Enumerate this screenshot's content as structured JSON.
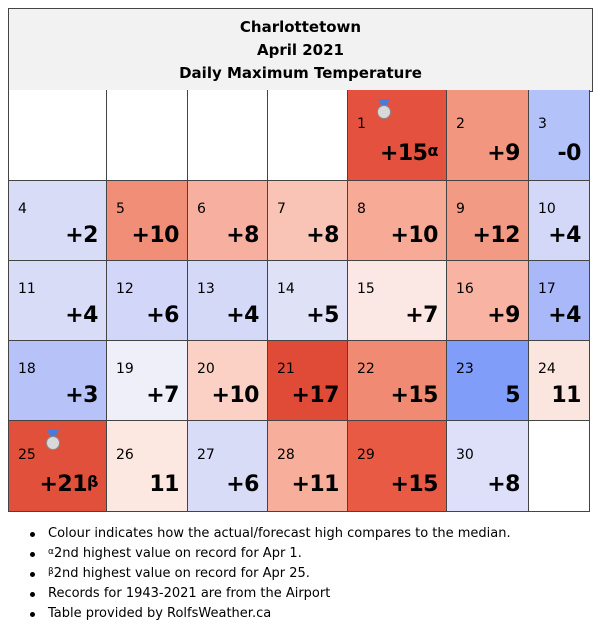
{
  "header": {
    "line1": "Charlottetown",
    "line2": "April 2021",
    "line3": "Daily Maximum Temperature"
  },
  "calendar": {
    "cells": [
      {
        "day": "",
        "value": "",
        "color": "#ffffff"
      },
      {
        "day": "",
        "value": "",
        "color": "#ffffff"
      },
      {
        "day": "",
        "value": "",
        "color": "#ffffff"
      },
      {
        "day": "",
        "value": "",
        "color": "#ffffff"
      },
      {
        "day": "1",
        "value": "+15",
        "sup": "α",
        "medal": true,
        "color": "#e4513e"
      },
      {
        "day": "2",
        "value": "+9",
        "color": "#f39680"
      },
      {
        "day": "3",
        "value": "-0",
        "color": "#b3c2f9"
      },
      {
        "day": "4",
        "value": "+2",
        "color": "#d8dcf7"
      },
      {
        "day": "5",
        "value": "+10",
        "color": "#f18e77"
      },
      {
        "day": "6",
        "value": "+8",
        "color": "#f7b09f"
      },
      {
        "day": "7",
        "value": "+8",
        "color": "#f9c4b6"
      },
      {
        "day": "8",
        "value": "+10",
        "color": "#f7aa96"
      },
      {
        "day": "9",
        "value": "+12",
        "color": "#f39a84"
      },
      {
        "day": "10",
        "value": "+4",
        "color": "#d3d8f8"
      },
      {
        "day": "11",
        "value": "+4",
        "color": "#d8dcf7"
      },
      {
        "day": "12",
        "value": "+6",
        "color": "#d2d6f8"
      },
      {
        "day": "13",
        "value": "+4",
        "color": "#d5d9f8"
      },
      {
        "day": "14",
        "value": "+5",
        "color": "#dfe2f7"
      },
      {
        "day": "15",
        "value": "+7",
        "color": "#fbe7e3"
      },
      {
        "day": "16",
        "value": "+9",
        "color": "#f8b3a2"
      },
      {
        "day": "17",
        "value": "+4",
        "color": "#a9b8f9"
      },
      {
        "day": "18",
        "value": "+3",
        "color": "#b7c3f8"
      },
      {
        "day": "19",
        "value": "+7",
        "color": "#efeffa"
      },
      {
        "day": "20",
        "value": "+10",
        "color": "#fbd0c5"
      },
      {
        "day": "21",
        "value": "+17",
        "color": "#e04b38"
      },
      {
        "day": "22",
        "value": "+15",
        "color": "#f08a72"
      },
      {
        "day": "23",
        "value": "5",
        "color": "#7f9df9"
      },
      {
        "day": "24",
        "value": "11",
        "color": "#fbe5df"
      },
      {
        "day": "25",
        "value": "+21",
        "sup": "β",
        "medal": true,
        "color": "#e0503b"
      },
      {
        "day": "26",
        "value": "11",
        "color": "#fde8e1"
      },
      {
        "day": "27",
        "value": "+6",
        "color": "#d8dcf7"
      },
      {
        "day": "28",
        "value": "+11",
        "color": "#f7ae9b"
      },
      {
        "day": "29",
        "value": "+15",
        "color": "#e85a44"
      },
      {
        "day": "30",
        "value": "+8",
        "color": "#dde0f8"
      },
      {
        "day": "",
        "value": "",
        "color": "#ffffff"
      }
    ]
  },
  "notes": {
    "n1": "Colour indicates how the actual/forecast high compares to the median.",
    "n2_sup": "α",
    "n2": "2nd highest value on record for Apr 1.",
    "n3_sup": "β",
    "n3": "2nd highest value on record for Apr 25.",
    "n4": "Records for 1943-2021 are from the Airport",
    "n5": "Table provided by RolfsWeather.ca"
  }
}
